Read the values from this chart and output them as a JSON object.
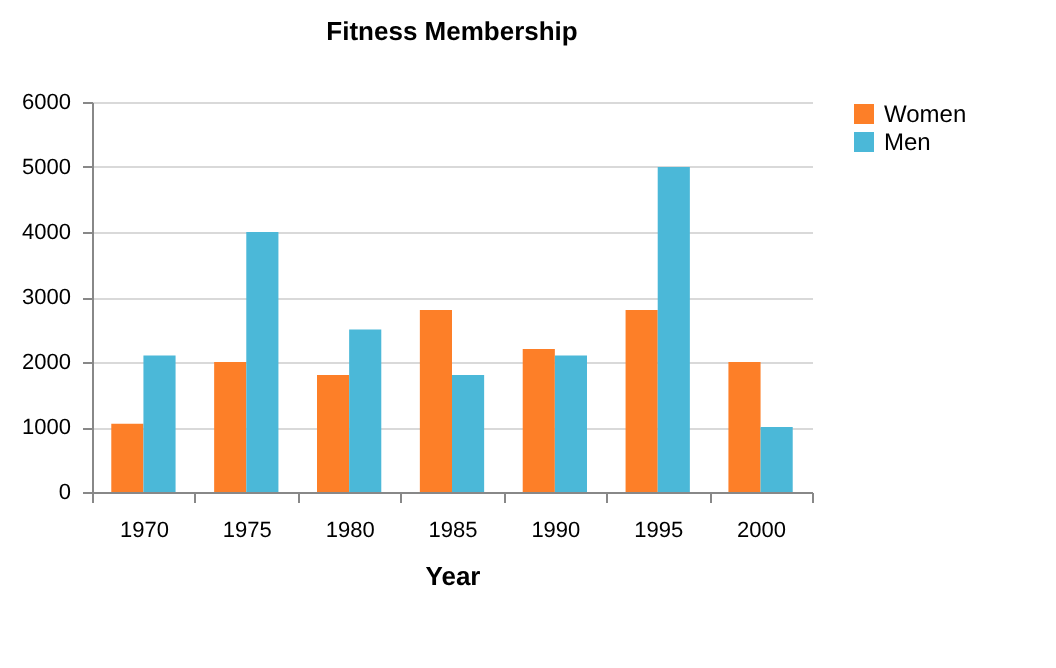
{
  "chart_data": {
    "type": "bar",
    "title": "Fitness Membership",
    "xlabel": "Year",
    "categories": [
      "1970",
      "1975",
      "1980",
      "1985",
      "1990",
      "1995",
      "2000"
    ],
    "series": [
      {
        "name": "Women",
        "color": "#fd7f28",
        "values": [
          1050,
          2000,
          1800,
          2800,
          2200,
          2800,
          2000
        ]
      },
      {
        "name": "Men",
        "color": "#4bb8d8",
        "values": [
          2100,
          4000,
          2500,
          1800,
          2100,
          5000,
          1000
        ]
      }
    ],
    "ylim": [
      0,
      6000
    ],
    "yticks": [
      0,
      1000,
      2000,
      3000,
      4000,
      5000,
      6000
    ],
    "grid": "y",
    "legend": "right"
  }
}
